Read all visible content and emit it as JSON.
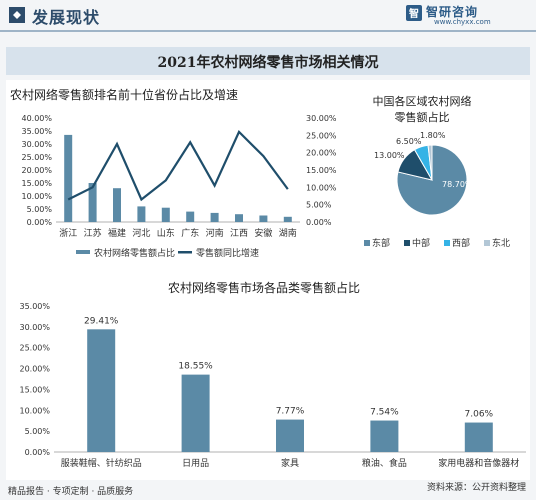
{
  "header": {
    "section_title": "发展现状",
    "logo_name": "智研咨询",
    "logo_url": "www.chyxx.com"
  },
  "banner_title": "2021年农村网络零售市场相关情况",
  "footer": {
    "left": "精品报告 · 专项定制 · 品质服务",
    "right": "资料来源：公开资料整理"
  },
  "chart_data": [
    {
      "type": "bar",
      "title": "农村网络零售额排名前十位省份占比及增速",
      "categories": [
        "浙江",
        "江苏",
        "福建",
        "河北",
        "山东",
        "广东",
        "河南",
        "江西",
        "安徽",
        "湖南"
      ],
      "series": [
        {
          "name": "农村网络零售额占比",
          "type": "bar",
          "axis": "left",
          "color": "#5b8aa6",
          "values": [
            33.5,
            15.0,
            13.0,
            6.0,
            5.5,
            4.0,
            3.5,
            3.0,
            2.5,
            2.0
          ]
        },
        {
          "name": "零售额同比增速",
          "type": "line",
          "axis": "right",
          "color": "#1f4e6b",
          "values": [
            6.5,
            10.0,
            22.5,
            6.5,
            12.0,
            23.0,
            10.5,
            26.0,
            19.0,
            9.5
          ]
        }
      ],
      "y_left": {
        "ticks": [
          "0.00%",
          "5.00%",
          "10.00%",
          "15.00%",
          "20.00%",
          "25.00%",
          "30.00%",
          "35.00%",
          "40.00%"
        ],
        "range": [
          0,
          40
        ]
      },
      "y_right": {
        "ticks": [
          "0.00%",
          "5.00%",
          "10.00%",
          "15.00%",
          "20.00%",
          "25.00%",
          "30.00%"
        ],
        "range": [
          0,
          30
        ]
      },
      "legend_position": "bottom"
    },
    {
      "type": "pie",
      "title": "中国各区域农村网络零售额占比",
      "slices": [
        {
          "name": "东部",
          "value": 78.7,
          "label": "78.70%",
          "color": "#5b8aa6"
        },
        {
          "name": "中部",
          "value": 13.0,
          "label": "13.00%",
          "color": "#1f4e6b"
        },
        {
          "name": "西部",
          "value": 6.5,
          "label": "6.50%",
          "color": "#35b3e6"
        },
        {
          "name": "东北",
          "value": 1.8,
          "label": "1.80%",
          "color": "#b3c7d6"
        }
      ],
      "legend_position": "bottom"
    },
    {
      "type": "bar",
      "title": "农村网络零售市场各品类零售额占比",
      "categories": [
        "服装鞋帽、针纺织品",
        "日用品",
        "家具",
        "粮油、食品",
        "家用电器和音像器材"
      ],
      "values": [
        29.41,
        18.55,
        7.77,
        7.54,
        7.06
      ],
      "labels": [
        "29.41%",
        "18.55%",
        "7.77%",
        "7.54%",
        "7.06%"
      ],
      "y_ticks": [
        "0.00%",
        "5.00%",
        "10.00%",
        "15.00%",
        "20.00%",
        "25.00%",
        "30.00%",
        "35.00%"
      ],
      "ylim": [
        0,
        35
      ],
      "color": "#5b8aa6"
    }
  ]
}
